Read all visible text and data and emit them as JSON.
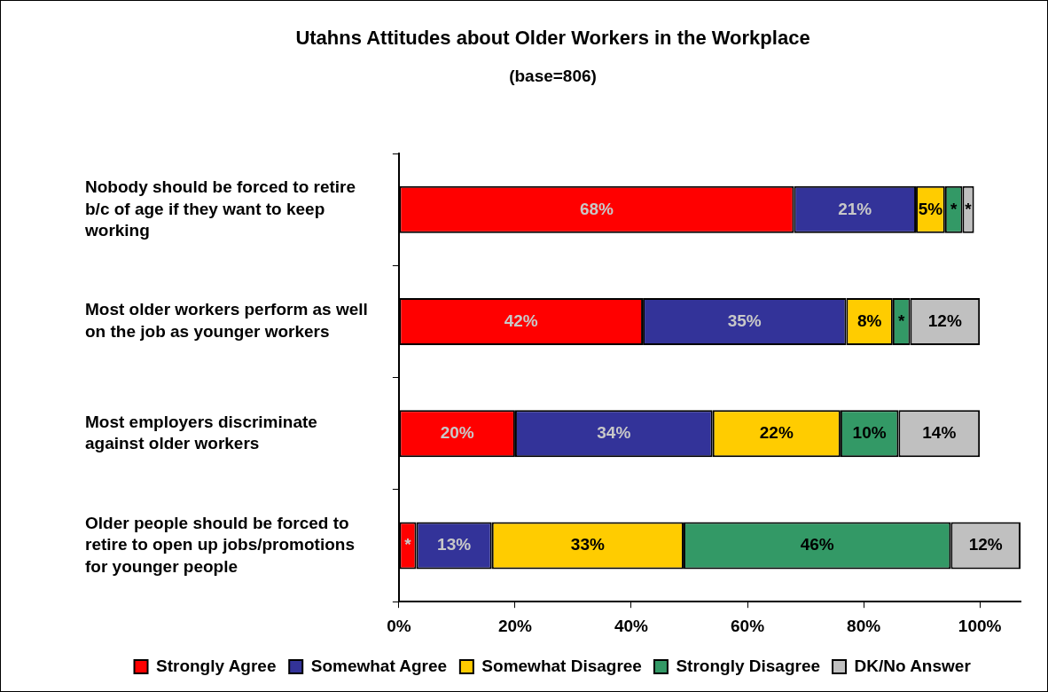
{
  "chart_data": {
    "type": "bar",
    "orientation": "horizontal",
    "stacked": true,
    "title": "Utahns Attitudes about Older Workers in the Workplace",
    "subtitle": "(base=806)",
    "categories": [
      "Nobody should be forced to retire b/c of age if they want to keep working",
      "Most older workers perform as well on the job as younger workers",
      "Most employers discriminate against older workers",
      "Older people should be forced to retire to open up jobs/promotions for younger people"
    ],
    "series": [
      {
        "name": "Strongly Agree",
        "color": "#ff0000",
        "values": [
          68,
          42,
          20,
          3
        ],
        "value_labels": [
          "68%",
          "42%",
          "20%",
          "*"
        ]
      },
      {
        "name": "Somewhat Agree",
        "color": "#333399",
        "values": [
          21,
          35,
          34,
          13
        ],
        "value_labels": [
          "21%",
          "35%",
          "34%",
          "13%"
        ]
      },
      {
        "name": "Somewhat Disagree",
        "color": "#ffcc00",
        "values": [
          5,
          8,
          22,
          33
        ],
        "value_labels": [
          "5%",
          "8%",
          "22%",
          "33%"
        ]
      },
      {
        "name": "Strongly Disagree",
        "color": "#339966",
        "values": [
          3,
          3,
          10,
          46
        ],
        "value_labels": [
          "*",
          "*",
          "10%",
          "46%"
        ]
      },
      {
        "name": "DK/No Answer",
        "color": "#c0c0c0",
        "values": [
          2,
          12,
          14,
          12
        ],
        "value_labels": [
          "*",
          "12%",
          "14%",
          "12%"
        ]
      }
    ],
    "xlim": [
      0,
      107
    ],
    "xticks": [
      {
        "value": 0,
        "label": "0%"
      },
      {
        "value": 20,
        "label": "20%"
      },
      {
        "value": 40,
        "label": "40%"
      },
      {
        "value": 60,
        "label": "60%"
      },
      {
        "value": 80,
        "label": "80%"
      },
      {
        "value": 100,
        "label": "100%"
      }
    ],
    "grid": false,
    "legend": "bottom"
  }
}
